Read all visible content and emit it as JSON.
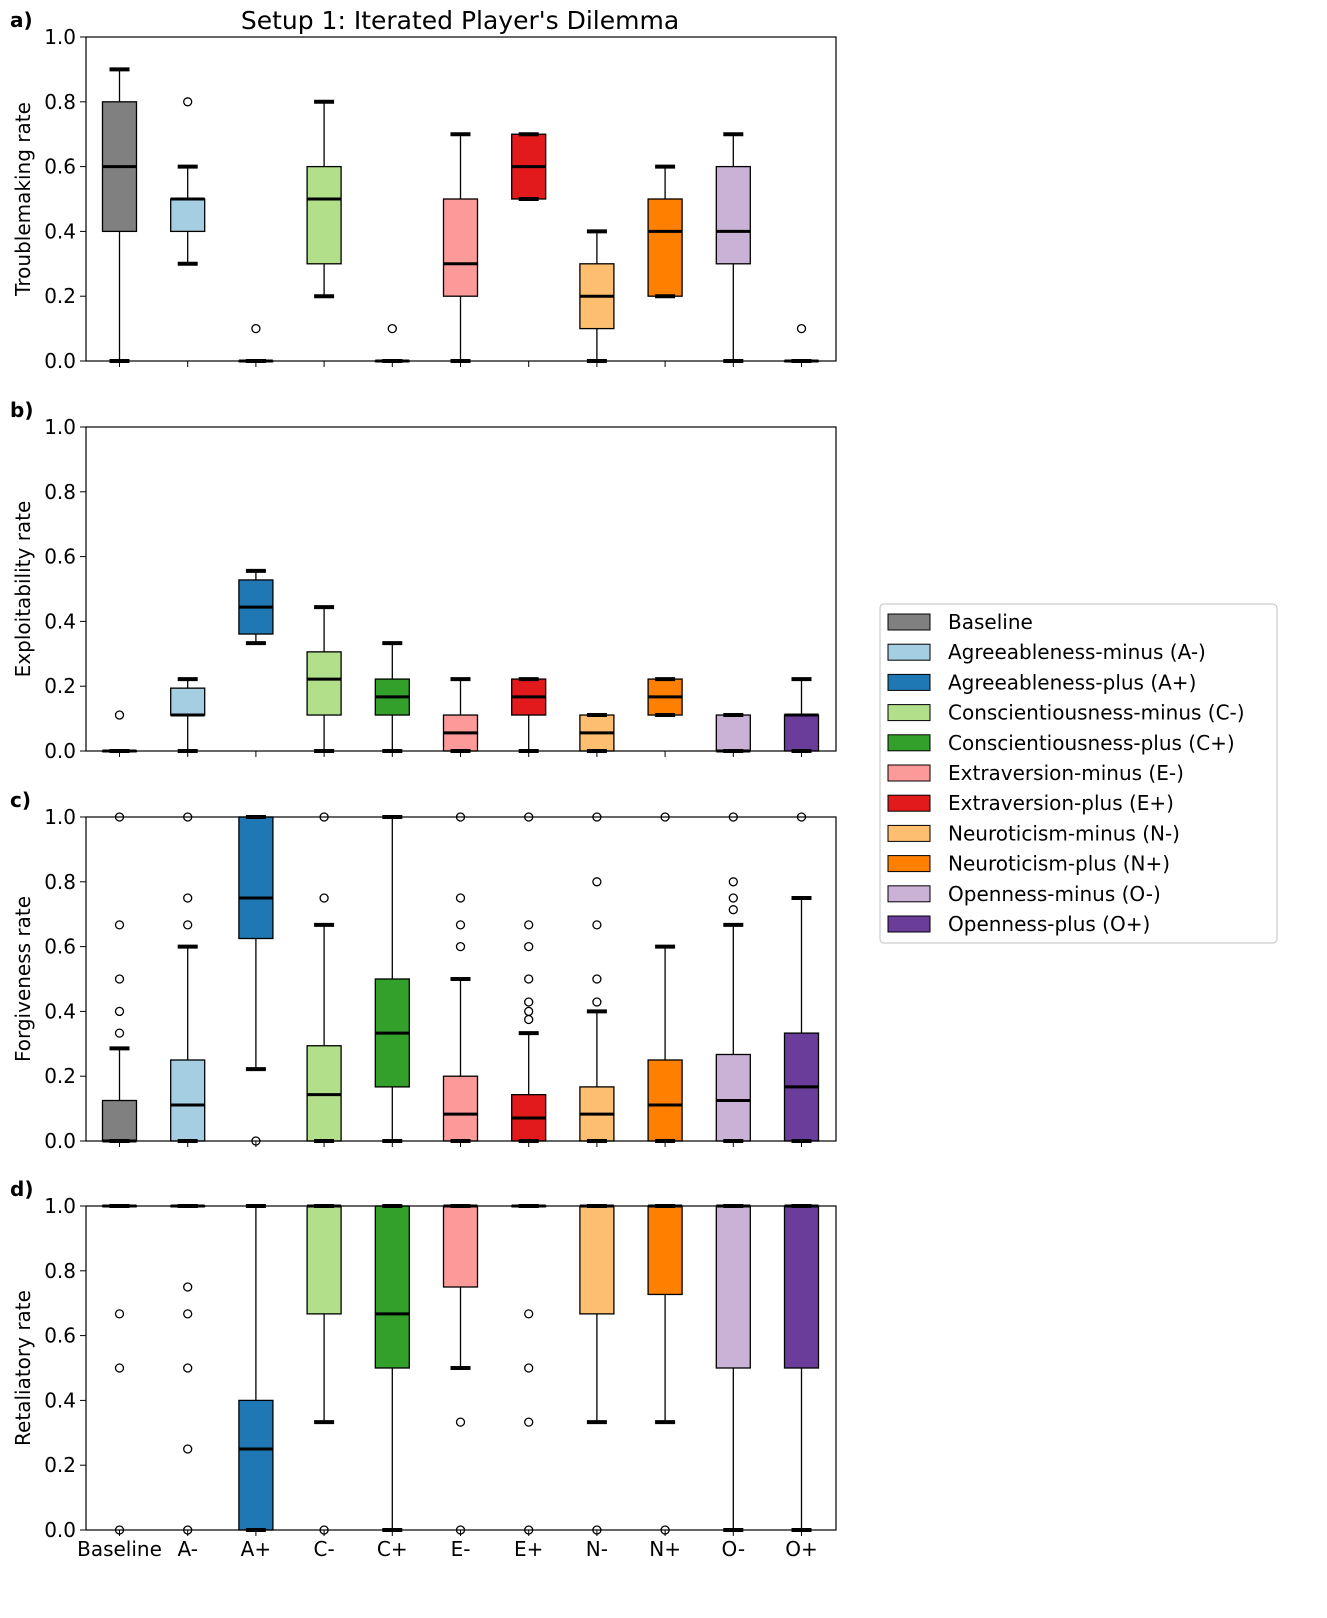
{
  "figure": {
    "title": "Setup 1: Iterated Player's Dilemma",
    "legend": {
      "position": "right",
      "entries": [
        {
          "label": "Baseline",
          "color": "#808080"
        },
        {
          "label": "Agreeableness-minus (A-)",
          "color": "#a6cee3"
        },
        {
          "label": "Agreeableness-plus (A+)",
          "color": "#1f78b4"
        },
        {
          "label": "Conscientiousness-minus (C-)",
          "color": "#b2df8a"
        },
        {
          "label": "Conscientiousness-plus (C+)",
          "color": "#33a02c"
        },
        {
          "label": "Extraversion-minus (E-)",
          "color": "#fb9a99"
        },
        {
          "label": "Extraversion-plus (E+)",
          "color": "#e31a1c"
        },
        {
          "label": "Neuroticism-minus (N-)",
          "color": "#fdbf6f"
        },
        {
          "label": "Neuroticism-plus (N+)",
          "color": "#ff7f00"
        },
        {
          "label": "Openness-minus (O-)",
          "color": "#cab2d6"
        },
        {
          "label": "Openness-plus (O+)",
          "color": "#6a3d9a"
        }
      ]
    }
  },
  "chart_data": [
    {
      "type": "box",
      "panel_label": "a)",
      "ylabel": "Troublemaking rate",
      "ylim": [
        0,
        1
      ],
      "yticks": [
        "0.0",
        "0.2",
        "0.4",
        "0.6",
        "0.8",
        "1.0"
      ],
      "categories": [
        "Baseline",
        "A-",
        "A+",
        "C-",
        "C+",
        "E-",
        "E+",
        "N-",
        "N+",
        "O-",
        "O+"
      ],
      "boxes": [
        {
          "min": 0.0,
          "q1": 0.4,
          "median": 0.6,
          "q3": 0.8,
          "max": 0.9,
          "outliers": []
        },
        {
          "min": 0.3,
          "q1": 0.4,
          "median": 0.5,
          "q3": 0.5,
          "max": 0.6,
          "outliers": [
            0.8
          ]
        },
        {
          "min": 0.0,
          "q1": 0.0,
          "median": 0.0,
          "q3": 0.0,
          "max": 0.0,
          "outliers": [
            0.1
          ]
        },
        {
          "min": 0.2,
          "q1": 0.3,
          "median": 0.5,
          "q3": 0.6,
          "max": 0.8,
          "outliers": []
        },
        {
          "min": 0.0,
          "q1": 0.0,
          "median": 0.0,
          "q3": 0.0,
          "max": 0.0,
          "outliers": [
            0.1
          ]
        },
        {
          "min": 0.0,
          "q1": 0.2,
          "median": 0.3,
          "q3": 0.5,
          "max": 0.7,
          "outliers": []
        },
        {
          "min": 0.5,
          "q1": 0.5,
          "median": 0.6,
          "q3": 0.7,
          "max": 0.7,
          "outliers": []
        },
        {
          "min": 0.0,
          "q1": 0.1,
          "median": 0.2,
          "q3": 0.3,
          "max": 0.4,
          "outliers": []
        },
        {
          "min": 0.2,
          "q1": 0.2,
          "median": 0.4,
          "q3": 0.5,
          "max": 0.6,
          "outliers": []
        },
        {
          "min": 0.0,
          "q1": 0.3,
          "median": 0.4,
          "q3": 0.6,
          "max": 0.7,
          "outliers": []
        },
        {
          "min": 0.0,
          "q1": 0.0,
          "median": 0.0,
          "q3": 0.0,
          "max": 0.0,
          "outliers": [
            0.1
          ]
        }
      ]
    },
    {
      "type": "box",
      "panel_label": "b)",
      "ylabel": "Exploitability rate",
      "ylim": [
        0,
        1
      ],
      "yticks": [
        "0.0",
        "0.2",
        "0.4",
        "0.6",
        "0.8",
        "1.0"
      ],
      "categories": [
        "Baseline",
        "A-",
        "A+",
        "C-",
        "C+",
        "E-",
        "E+",
        "N-",
        "N+",
        "O-",
        "O+"
      ],
      "boxes": [
        {
          "min": 0.0,
          "q1": 0.0,
          "median": 0.0,
          "q3": 0.0,
          "max": 0.0,
          "outliers": [
            0.111
          ]
        },
        {
          "min": 0.0,
          "q1": 0.111,
          "median": 0.111,
          "q3": 0.194,
          "max": 0.222,
          "outliers": []
        },
        {
          "min": 0.333,
          "q1": 0.361,
          "median": 0.444,
          "q3": 0.528,
          "max": 0.556,
          "outliers": []
        },
        {
          "min": 0.0,
          "q1": 0.111,
          "median": 0.222,
          "q3": 0.306,
          "max": 0.444,
          "outliers": []
        },
        {
          "min": 0.0,
          "q1": 0.111,
          "median": 0.167,
          "q3": 0.222,
          "max": 0.333,
          "outliers": []
        },
        {
          "min": 0.0,
          "q1": 0.0,
          "median": 0.056,
          "q3": 0.111,
          "max": 0.222,
          "outliers": []
        },
        {
          "min": 0.0,
          "q1": 0.111,
          "median": 0.167,
          "q3": 0.222,
          "max": 0.222,
          "outliers": []
        },
        {
          "min": 0.0,
          "q1": 0.0,
          "median": 0.056,
          "q3": 0.111,
          "max": 0.111,
          "outliers": []
        },
        {
          "min": 0.111,
          "q1": 0.111,
          "median": 0.167,
          "q3": 0.222,
          "max": 0.222,
          "outliers": []
        },
        {
          "min": 0.0,
          "q1": 0.0,
          "median": 0.0,
          "q3": 0.111,
          "max": 0.111,
          "outliers": []
        },
        {
          "min": 0.0,
          "q1": 0.0,
          "median": 0.111,
          "q3": 0.111,
          "max": 0.222,
          "outliers": []
        }
      ]
    },
    {
      "type": "box",
      "panel_label": "c)",
      "ylabel": "Forgiveness rate",
      "ylim": [
        0,
        1
      ],
      "yticks": [
        "0.0",
        "0.2",
        "0.4",
        "0.6",
        "0.8",
        "1.0"
      ],
      "categories": [
        "Baseline",
        "A-",
        "A+",
        "C-",
        "C+",
        "E-",
        "E+",
        "N-",
        "N+",
        "O-",
        "O+"
      ],
      "boxes": [
        {
          "min": 0.0,
          "q1": 0.0,
          "median": 0.0,
          "q3": 0.125,
          "max": 0.286,
          "outliers": [
            0.333,
            0.4,
            0.5,
            0.667,
            1.0
          ]
        },
        {
          "min": 0.0,
          "q1": 0.0,
          "median": 0.111,
          "q3": 0.25,
          "max": 0.6,
          "outliers": [
            0.667,
            0.75,
            1.0
          ]
        },
        {
          "min": 0.222,
          "q1": 0.625,
          "median": 0.75,
          "q3": 1.0,
          "max": 1.0,
          "outliers": [
            0.0
          ]
        },
        {
          "min": 0.0,
          "q1": 0.0,
          "median": 0.143,
          "q3": 0.294,
          "max": 0.667,
          "outliers": [
            0.75,
            1.0
          ]
        },
        {
          "min": 0.0,
          "q1": 0.167,
          "median": 0.333,
          "q3": 0.5,
          "max": 1.0,
          "outliers": []
        },
        {
          "min": 0.0,
          "q1": 0.0,
          "median": 0.083,
          "q3": 0.2,
          "max": 0.5,
          "outliers": [
            0.6,
            0.667,
            0.75,
            1.0
          ]
        },
        {
          "min": 0.0,
          "q1": 0.0,
          "median": 0.071,
          "q3": 0.143,
          "max": 0.333,
          "outliers": [
            0.375,
            0.4,
            0.429,
            0.5,
            0.6,
            0.667,
            1.0
          ]
        },
        {
          "min": 0.0,
          "q1": 0.0,
          "median": 0.083,
          "q3": 0.167,
          "max": 0.4,
          "outliers": [
            0.429,
            0.5,
            0.667,
            0.8,
            1.0
          ]
        },
        {
          "min": 0.0,
          "q1": 0.0,
          "median": 0.111,
          "q3": 0.25,
          "max": 0.6,
          "outliers": [
            1.0
          ]
        },
        {
          "min": 0.0,
          "q1": 0.0,
          "median": 0.125,
          "q3": 0.267,
          "max": 0.667,
          "outliers": [
            0.714,
            0.75,
            0.8,
            1.0
          ]
        },
        {
          "min": 0.0,
          "q1": 0.0,
          "median": 0.167,
          "q3": 0.333,
          "max": 0.75,
          "outliers": [
            1.0
          ]
        }
      ]
    },
    {
      "type": "box",
      "panel_label": "d)",
      "ylabel": "Retaliatory rate",
      "ylim": [
        0,
        1
      ],
      "yticks": [
        "0.0",
        "0.2",
        "0.4",
        "0.6",
        "0.8",
        "1.0"
      ],
      "categories": [
        "Baseline",
        "A-",
        "A+",
        "C-",
        "C+",
        "E-",
        "E+",
        "N-",
        "N+",
        "O-",
        "O+"
      ],
      "boxes": [
        {
          "min": 1.0,
          "q1": 1.0,
          "median": 1.0,
          "q3": 1.0,
          "max": 1.0,
          "outliers": [
            0.0,
            0.5,
            0.667
          ]
        },
        {
          "min": 1.0,
          "q1": 1.0,
          "median": 1.0,
          "q3": 1.0,
          "max": 1.0,
          "outliers": [
            0.0,
            0.25,
            0.5,
            0.667,
            0.75
          ]
        },
        {
          "min": 0.0,
          "q1": 0.0,
          "median": 0.25,
          "q3": 0.4,
          "max": 1.0,
          "outliers": []
        },
        {
          "min": 0.333,
          "q1": 0.667,
          "median": 1.0,
          "q3": 1.0,
          "max": 1.0,
          "outliers": [
            0.0
          ]
        },
        {
          "min": 0.0,
          "q1": 0.5,
          "median": 0.667,
          "q3": 1.0,
          "max": 1.0,
          "outliers": []
        },
        {
          "min": 0.5,
          "q1": 0.75,
          "median": 1.0,
          "q3": 1.0,
          "max": 1.0,
          "outliers": [
            0.0,
            0.333
          ]
        },
        {
          "min": 1.0,
          "q1": 1.0,
          "median": 1.0,
          "q3": 1.0,
          "max": 1.0,
          "outliers": [
            0.0,
            0.333,
            0.5,
            0.667
          ]
        },
        {
          "min": 0.333,
          "q1": 0.667,
          "median": 1.0,
          "q3": 1.0,
          "max": 1.0,
          "outliers": [
            0.0
          ]
        },
        {
          "min": 0.333,
          "q1": 0.727,
          "median": 1.0,
          "q3": 1.0,
          "max": 1.0,
          "outliers": [
            0.0
          ]
        },
        {
          "min": 0.0,
          "q1": 0.5,
          "median": 1.0,
          "q3": 1.0,
          "max": 1.0,
          "outliers": []
        },
        {
          "min": 0.0,
          "q1": 0.5,
          "median": 1.0,
          "q3": 1.0,
          "max": 1.0,
          "outliers": []
        }
      ],
      "xticks": [
        "Baseline",
        "A-",
        "A+",
        "C-",
        "C+",
        "E-",
        "E+",
        "N-",
        "N+",
        "O-",
        "O+"
      ]
    }
  ]
}
